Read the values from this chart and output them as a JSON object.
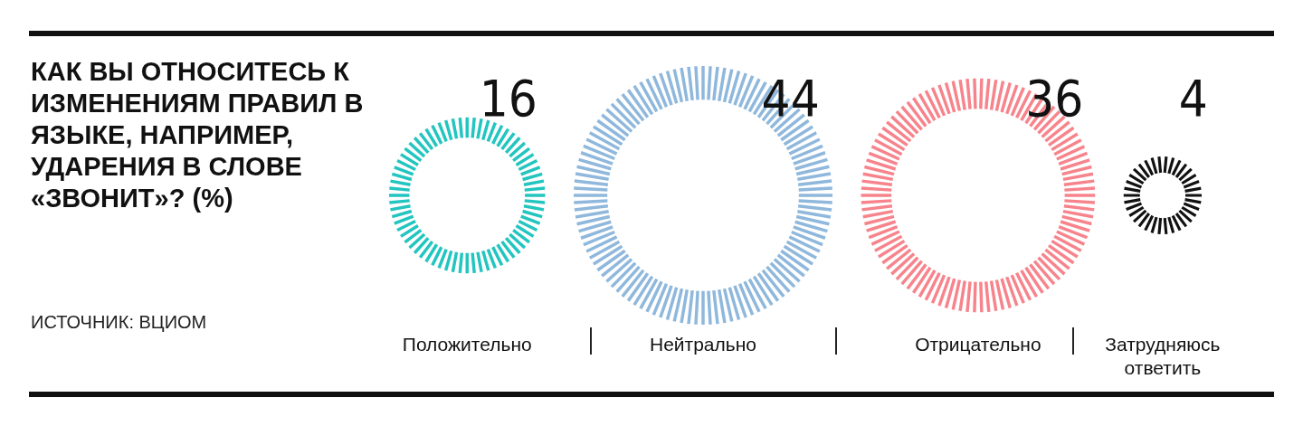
{
  "chart_data": {
    "type": "other",
    "title": "КАК ВЫ ОТНОСИТЕСЬ К ИЗМЕНЕНИЯМ ПРАВИЛ В ЯЗЫКЕ, НАПРИМЕР, УДАРЕНИЯ В СЛОВЕ «ЗВОНИТ»? (%)",
    "categories": [
      "Положительно",
      "Нейтрально",
      "Отрицательно",
      "Затрудняюсь ответить"
    ],
    "values": [
      16,
      44,
      36,
      4
    ],
    "colors": [
      "#22c5bf",
      "#8fb8dc",
      "#f7848c",
      "#111111"
    ],
    "data_labels": true,
    "annotations": [
      "ИСТОЧНИК: ВЦИОМ"
    ]
  }
}
